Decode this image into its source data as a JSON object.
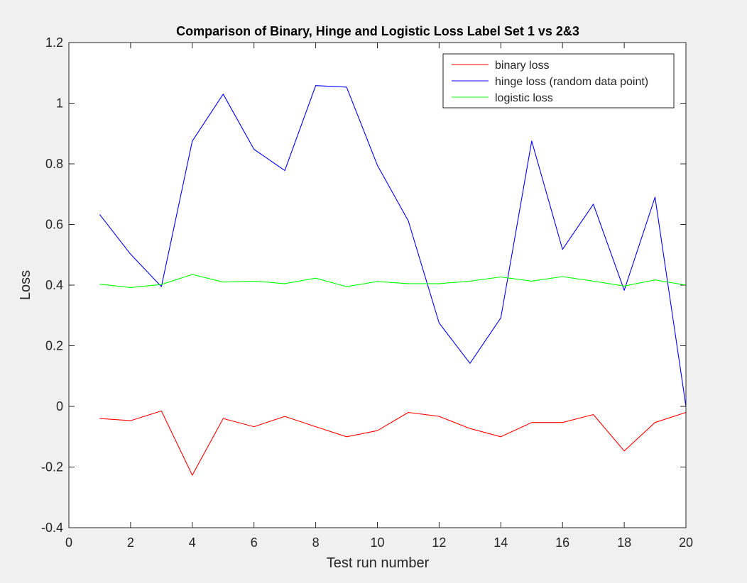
{
  "chart_data": {
    "type": "line",
    "title": "Comparison of Binary, Hinge and Logistic Loss Label Set 1 vs 2&3",
    "xlabel": "Test run number",
    "ylabel": "Loss",
    "xlim": [
      0,
      20
    ],
    "ylim": [
      -0.4,
      1.2
    ],
    "xticks": [
      0,
      2,
      4,
      6,
      8,
      10,
      12,
      14,
      16,
      18,
      20
    ],
    "yticks": [
      -0.4,
      -0.2,
      0,
      0.2,
      0.4,
      0.6,
      0.8,
      1,
      1.2
    ],
    "xtick_labels": [
      "0",
      "2",
      "4",
      "6",
      "8",
      "10",
      "12",
      "14",
      "16",
      "18",
      "20"
    ],
    "ytick_labels": [
      "-0.4",
      "-0.2",
      "0",
      "0.2",
      "0.4",
      "0.6",
      "0.8",
      "1",
      "1.2"
    ],
    "grid": false,
    "legend_position": "top-right",
    "x": [
      1,
      2,
      3,
      4,
      5,
      6,
      7,
      8,
      9,
      10,
      11,
      12,
      13,
      14,
      15,
      16,
      17,
      18,
      19,
      20
    ],
    "series": [
      {
        "name": "binary loss",
        "color": "#ff0000",
        "values": [
          -0.04,
          -0.047,
          -0.015,
          -0.227,
          -0.04,
          -0.067,
          -0.033,
          -0.067,
          -0.1,
          -0.08,
          -0.02,
          -0.033,
          -0.073,
          -0.1,
          -0.053,
          -0.053,
          -0.027,
          -0.147,
          -0.053,
          -0.02
        ]
      },
      {
        "name": "hinge loss (random data point)",
        "color": "#0000ff",
        "values": [
          0.633,
          0.502,
          0.395,
          0.875,
          1.03,
          0.848,
          0.778,
          1.058,
          1.053,
          0.795,
          0.612,
          0.275,
          0.142,
          0.292,
          0.875,
          0.518,
          0.667,
          0.383,
          0.69,
          0.0
        ]
      },
      {
        "name": "logistic loss",
        "color": "#00ff00",
        "values": [
          0.403,
          0.392,
          0.402,
          0.435,
          0.41,
          0.413,
          0.405,
          0.423,
          0.395,
          0.412,
          0.405,
          0.405,
          0.413,
          0.427,
          0.413,
          0.428,
          0.413,
          0.397,
          0.417,
          0.4
        ]
      }
    ]
  }
}
